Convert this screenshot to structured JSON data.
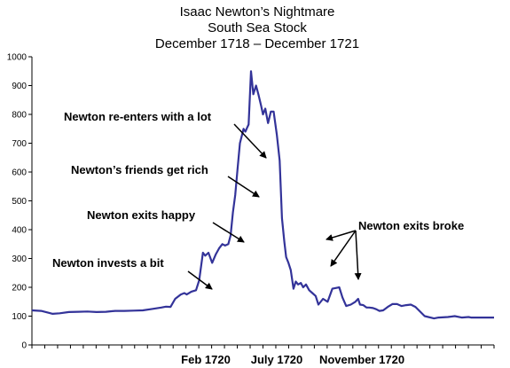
{
  "chart_data": {
    "type": "line",
    "title_lines": [
      "Isaac Newton’s Nightmare",
      "South Sea Stock",
      "December 1718 – December 1721"
    ],
    "xlabel": "",
    "ylabel": "",
    "x_range_months": [
      "Dec 1718",
      "Dec 1721"
    ],
    "ylim": [
      0,
      1000
    ],
    "y_ticks": [
      0,
      100,
      200,
      300,
      400,
      500,
      600,
      700,
      800,
      900,
      1000
    ],
    "x_tick_labels": [
      {
        "label": "Feb 1720",
        "t": 0.322
      },
      {
        "label": "July 1720",
        "t": 0.469
      },
      {
        "label": "November 1720",
        "t": 0.701
      }
    ],
    "grid": false,
    "line_color": "#333399",
    "series": [
      {
        "t": [
          0.0,
          0.02,
          0.035,
          0.045,
          0.06,
          0.08,
          0.1,
          0.12,
          0.14,
          0.16,
          0.18,
          0.2,
          0.22,
          0.24,
          0.26,
          0.28,
          0.29,
          0.3,
          0.31,
          0.322,
          0.33,
          0.335,
          0.345,
          0.355,
          0.362,
          0.37,
          0.375,
          0.382,
          0.39,
          0.398,
          0.405,
          0.412,
          0.418,
          0.425,
          0.43,
          0.435,
          0.44,
          0.445,
          0.45,
          0.458,
          0.462,
          0.466,
          0.469,
          0.474,
          0.479,
          0.485,
          0.49,
          0.496,
          0.5,
          0.505,
          0.511,
          0.517,
          0.523,
          0.53,
          0.536,
          0.541,
          0.546,
          0.55,
          0.555,
          0.56,
          0.566,
          0.571,
          0.576,
          0.582,
          0.587,
          0.593,
          0.6,
          0.607,
          0.614,
          0.62,
          0.63,
          0.64,
          0.65,
          0.665,
          0.672,
          0.68,
          0.69,
          0.7,
          0.706,
          0.71,
          0.717,
          0.724,
          0.73,
          0.738,
          0.745,
          0.752,
          0.76,
          0.77,
          0.78,
          0.79,
          0.8,
          0.81,
          0.82,
          0.83,
          0.85,
          0.87,
          0.88,
          0.9,
          0.915,
          0.93,
          0.945,
          0.95,
          0.955,
          0.96,
          0.965,
          0.97,
          0.98,
          0.99,
          1.0
        ],
        "values": [
          120,
          118,
          112,
          108,
          110,
          114,
          115,
          116,
          114,
          115,
          118,
          118,
          119,
          120,
          125,
          130,
          133,
          132,
          160,
          175,
          180,
          175,
          185,
          190,
          225,
          320,
          310,
          320,
          285,
          315,
          335,
          350,
          345,
          350,
          380,
          460,
          520,
          610,
          700,
          750,
          740,
          755,
          765,
          950,
          870,
          900,
          870,
          830,
          800,
          820,
          770,
          810,
          810,
          730,
          640,
          440,
          360,
          305,
          285,
          260,
          195,
          220,
          210,
          215,
          200,
          210,
          190,
          180,
          170,
          140,
          160,
          150,
          195,
          200,
          165,
          135,
          140,
          150,
          160,
          140,
          138,
          130,
          130,
          128,
          124,
          118,
          120,
          132,
          142,
          142,
          135,
          138,
          140,
          132,
          100,
          92,
          95,
          97,
          100,
          95,
          97,
          95,
          95,
          95,
          95,
          95,
          95,
          95,
          95
        ]
      }
    ],
    "annotations": [
      {
        "text": "Newton re-enters with a lot"
      },
      {
        "text": "Newton’s friends get rich"
      },
      {
        "text": "Newton exits happy"
      },
      {
        "text": "Newton invests a bit"
      },
      {
        "text": "Newton exits broke"
      }
    ]
  }
}
